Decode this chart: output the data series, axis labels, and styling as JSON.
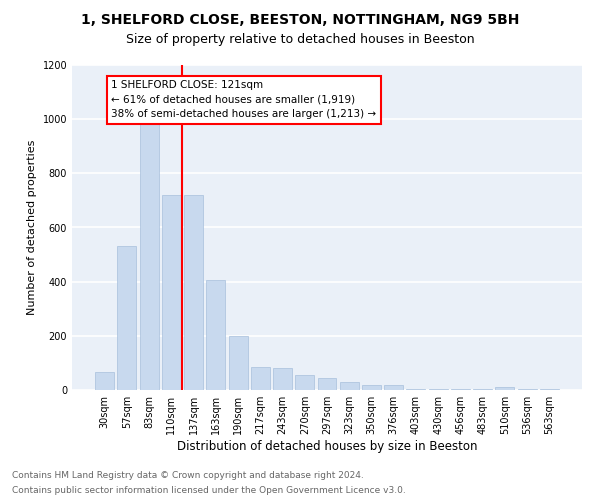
{
  "title1": "1, SHELFORD CLOSE, BEESTON, NOTTINGHAM, NG9 5BH",
  "title2": "Size of property relative to detached houses in Beeston",
  "xlabel": "Distribution of detached houses by size in Beeston",
  "ylabel": "Number of detached properties",
  "categories": [
    "30sqm",
    "57sqm",
    "83sqm",
    "110sqm",
    "137sqm",
    "163sqm",
    "190sqm",
    "217sqm",
    "243sqm",
    "270sqm",
    "297sqm",
    "323sqm",
    "350sqm",
    "376sqm",
    "403sqm",
    "430sqm",
    "456sqm",
    "483sqm",
    "510sqm",
    "536sqm",
    "563sqm"
  ],
  "values": [
    65,
    530,
    1000,
    720,
    720,
    405,
    200,
    85,
    80,
    55,
    45,
    30,
    18,
    18,
    5,
    5,
    3,
    3,
    12,
    3,
    3
  ],
  "bar_color": "#c8d9ee",
  "bar_edge_color": "#a8c0dc",
  "annotation_text": "1 SHELFORD CLOSE: 121sqm\n← 61% of detached houses are smaller (1,919)\n38% of semi-detached houses are larger (1,213) →",
  "annotation_box_color": "white",
  "annotation_box_edge_color": "red",
  "vline_x": 3.5,
  "vline_color": "red",
  "ylim": [
    0,
    1200
  ],
  "yticks": [
    0,
    200,
    400,
    600,
    800,
    1000,
    1200
  ],
  "footnote1": "Contains HM Land Registry data © Crown copyright and database right 2024.",
  "footnote2": "Contains public sector information licensed under the Open Government Licence v3.0.",
  "background_color": "#eaf0f8",
  "grid_color": "white",
  "title1_fontsize": 10,
  "title2_fontsize": 9,
  "xlabel_fontsize": 8.5,
  "ylabel_fontsize": 8,
  "tick_fontsize": 7,
  "annot_fontsize": 7.5,
  "footnote_fontsize": 6.5
}
